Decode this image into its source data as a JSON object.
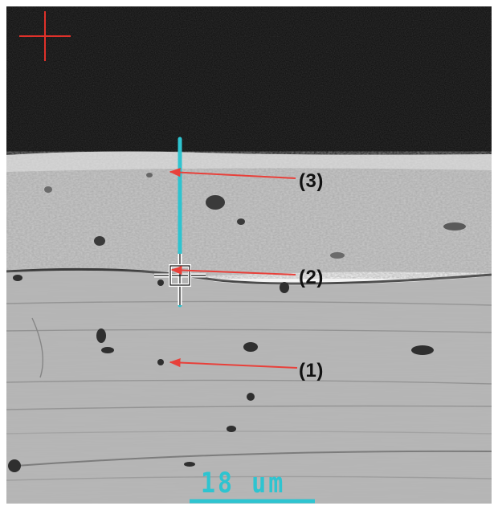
{
  "annotations": {
    "label_1": "(1)",
    "label_2": "(2)",
    "label_3": "(3)"
  },
  "scale_bar": {
    "text": "18 um"
  },
  "colors": {
    "arrow": "#e8403a",
    "line_scan": "#2ec4d0",
    "reference_cross": "#e0312a",
    "background": "#0b0b0b"
  }
}
